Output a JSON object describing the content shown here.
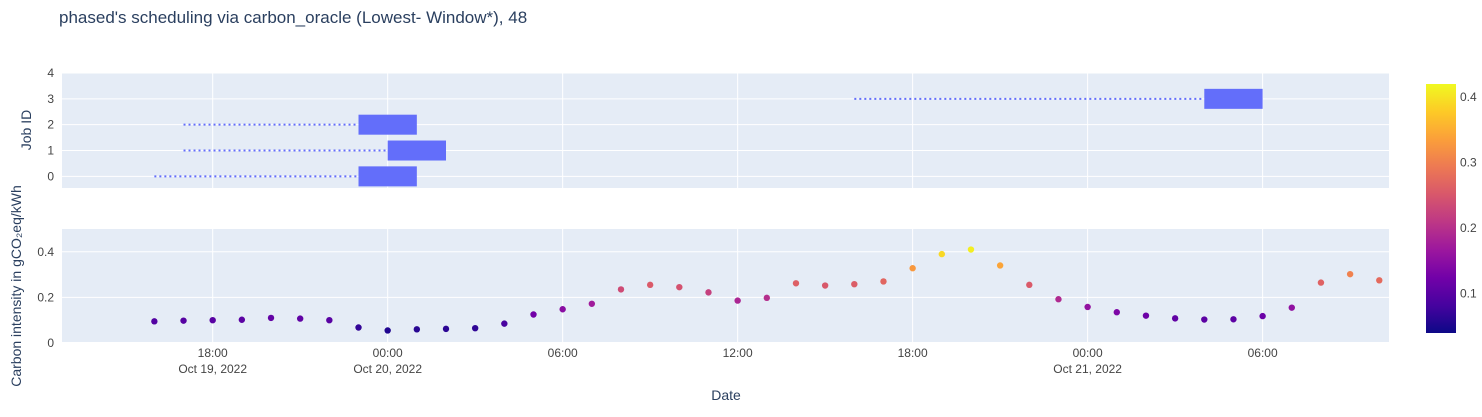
{
  "chart_data": {
    "title": "phased's scheduling via carbon_oracle (Lowest- Window*), 48",
    "x_axis": {
      "label": "Date",
      "range": [
        "2022-10-19T12:50",
        "2022-10-21T10:20"
      ],
      "ticks": [
        {
          "t": "2022-10-19T18:00",
          "line1": "18:00",
          "line2": "Oct 19, 2022"
        },
        {
          "t": "2022-10-20T00:00",
          "line1": "00:00",
          "line2": "Oct 20, 2022"
        },
        {
          "t": "2022-10-20T06:00",
          "line1": "06:00",
          "line2": ""
        },
        {
          "t": "2022-10-20T12:00",
          "line1": "12:00",
          "line2": ""
        },
        {
          "t": "2022-10-20T18:00",
          "line1": "18:00",
          "line2": ""
        },
        {
          "t": "2022-10-21T00:00",
          "line1": "00:00",
          "line2": "Oct 21, 2022"
        },
        {
          "t": "2022-10-21T06:00",
          "line1": "06:00",
          "line2": ""
        }
      ]
    },
    "top_panel": {
      "type": "gantt",
      "ylabel": "Job ID",
      "ylim": [
        -0.45,
        4
      ],
      "yticks": [
        0,
        1,
        2,
        3,
        4
      ],
      "bar_color": "#636efa",
      "jobs": [
        {
          "id": 0,
          "wait_start": "2022-10-19T16:00",
          "start": "2022-10-19T23:00",
          "end": "2022-10-20T01:00"
        },
        {
          "id": 1,
          "wait_start": "2022-10-19T17:00",
          "start": "2022-10-20T00:00",
          "end": "2022-10-20T02:00"
        },
        {
          "id": 2,
          "wait_start": "2022-10-19T17:00",
          "start": "2022-10-19T23:00",
          "end": "2022-10-20T01:00"
        },
        {
          "id": 3,
          "wait_start": "2022-10-20T16:00",
          "start": "2022-10-21T04:00",
          "end": "2022-10-21T06:00"
        }
      ]
    },
    "bottom_panel": {
      "type": "scatter",
      "ylabel": "Carbon intensity in gCO₂eq/kWh",
      "ylim": [
        0,
        0.5
      ],
      "yticks": [
        0,
        0.2,
        0.4
      ],
      "start": "2022-10-19T16:00",
      "step_hours": 1,
      "values": [
        0.095,
        0.098,
        0.1,
        0.102,
        0.11,
        0.107,
        0.1,
        0.068,
        0.055,
        0.06,
        0.062,
        0.065,
        0.085,
        0.125,
        0.148,
        0.172,
        0.235,
        0.255,
        0.245,
        0.222,
        0.186,
        0.198,
        0.262,
        0.252,
        0.258,
        0.27,
        0.328,
        0.39,
        0.41,
        0.34,
        0.255,
        0.192,
        0.158,
        0.135,
        0.12,
        0.108,
        0.103,
        0.104,
        0.118,
        0.155,
        0.265,
        0.302,
        0.275
      ]
    },
    "colorbar": {
      "min": 0.04,
      "max": 0.42,
      "ticks": [
        0.1,
        0.2,
        0.3,
        0.4
      ],
      "tick_labels": [
        "0.1",
        "0.2",
        "0.3",
        "0.4"
      ],
      "colorscale": [
        "#0d0887",
        "#46039f",
        "#7201a8",
        "#9c179e",
        "#bd3786",
        "#d8576b",
        "#ed7953",
        "#fb9f3a",
        "#fdca26",
        "#f0f921"
      ]
    }
  }
}
